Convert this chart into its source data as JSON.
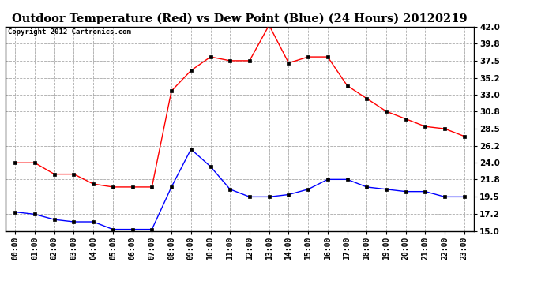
{
  "title": "Outdoor Temperature (Red) vs Dew Point (Blue) (24 Hours) 20120219",
  "copyright": "Copyright 2012 Cartronics.com",
  "hours": [
    "00:00",
    "01:00",
    "02:00",
    "03:00",
    "04:00",
    "05:00",
    "06:00",
    "07:00",
    "08:00",
    "09:00",
    "10:00",
    "11:00",
    "12:00",
    "13:00",
    "14:00",
    "15:00",
    "16:00",
    "17:00",
    "18:00",
    "19:00",
    "20:00",
    "21:00",
    "22:00",
    "23:00"
  ],
  "temp_red": [
    24.0,
    24.0,
    22.5,
    22.5,
    21.2,
    20.8,
    20.8,
    20.8,
    33.5,
    36.2,
    38.0,
    37.5,
    37.5,
    42.2,
    37.2,
    38.0,
    38.0,
    34.2,
    32.5,
    30.8,
    29.8,
    28.8,
    28.5,
    27.5
  ],
  "dew_blue": [
    17.5,
    17.2,
    16.5,
    16.2,
    16.2,
    15.2,
    15.2,
    15.2,
    20.8,
    25.8,
    23.5,
    20.5,
    19.5,
    19.5,
    19.8,
    20.5,
    21.8,
    21.8,
    20.8,
    20.5,
    20.2,
    20.2,
    19.5,
    19.5
  ],
  "ylim_min": 15.0,
  "ylim_max": 42.0,
  "yticks": [
    15.0,
    17.2,
    19.5,
    21.8,
    24.0,
    26.2,
    28.5,
    30.8,
    33.0,
    35.2,
    37.5,
    39.8,
    42.0
  ],
  "bg_color": "#ffffff",
  "grid_color": "#aaaaaa",
  "temp_color": "red",
  "dew_color": "blue",
  "title_fontsize": 10.5,
  "copyright_fontsize": 6.5,
  "tick_fontsize": 7.5,
  "xtick_fontsize": 7
}
